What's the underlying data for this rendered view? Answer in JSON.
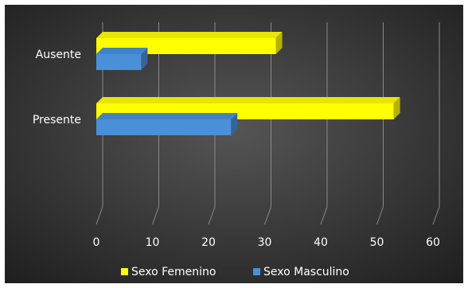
{
  "chart_data": {
    "type": "bar",
    "orientation": "horizontal",
    "style": "3d",
    "categories": [
      "Ausente",
      "Presente"
    ],
    "series": [
      {
        "name": "Sexo Femenino",
        "color": "#ffff00",
        "values": [
          32,
          53
        ]
      },
      {
        "name": "Sexo Masculino",
        "color": "#4a90d9",
        "values": [
          8,
          24
        ]
      }
    ],
    "xlim": [
      0,
      60
    ],
    "xticks": [
      "0",
      "10",
      "20",
      "30",
      "40",
      "50",
      "60"
    ],
    "grid": true,
    "legend_position": "bottom",
    "title": "",
    "xlabel": "",
    "ylabel": "",
    "background_color": "#3a3a3a"
  }
}
